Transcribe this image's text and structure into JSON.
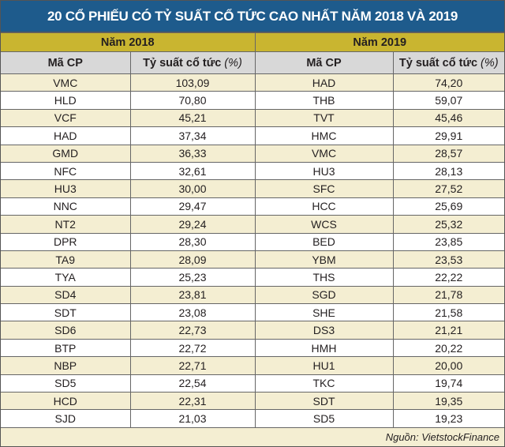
{
  "title": "20 CỔ PHIẾU CÓ TỶ SUẤT CỔ TỨC CAO NHẤT NĂM 2018 VÀ 2019",
  "years": [
    "Năm 2018",
    "Năm 2019"
  ],
  "columns": {
    "code": "Mã CP",
    "yield": "Tỷ suất cổ tức",
    "unit": "(%)"
  },
  "rows": [
    {
      "c18": "VMC",
      "v18": "103,09",
      "c19": "HAD",
      "v19": "74,20"
    },
    {
      "c18": "HLD",
      "v18": "70,80",
      "c19": "THB",
      "v19": "59,07"
    },
    {
      "c18": "VCF",
      "v18": "45,21",
      "c19": "TVT",
      "v19": "45,46"
    },
    {
      "c18": "HAD",
      "v18": "37,34",
      "c19": "HMC",
      "v19": "29,91"
    },
    {
      "c18": "GMD",
      "v18": "36,33",
      "c19": "VMC",
      "v19": "28,57"
    },
    {
      "c18": "NFC",
      "v18": "32,61",
      "c19": "HU3",
      "v19": "28,13"
    },
    {
      "c18": "HU3",
      "v18": "30,00",
      "c19": "SFC",
      "v19": "27,52"
    },
    {
      "c18": "NNC",
      "v18": "29,47",
      "c19": "HCC",
      "v19": "25,69"
    },
    {
      "c18": "NT2",
      "v18": "29,24",
      "c19": "WCS",
      "v19": "25,32"
    },
    {
      "c18": "DPR",
      "v18": "28,30",
      "c19": "BED",
      "v19": "23,85"
    },
    {
      "c18": "TA9",
      "v18": "28,09",
      "c19": "YBM",
      "v19": "23,53"
    },
    {
      "c18": "TYA",
      "v18": "25,23",
      "c19": "THS",
      "v19": "22,22"
    },
    {
      "c18": "SD4",
      "v18": "23,81",
      "c19": "SGD",
      "v19": "21,78"
    },
    {
      "c18": "SDT",
      "v18": "23,08",
      "c19": "SHE",
      "v19": "21,58"
    },
    {
      "c18": "SD6",
      "v18": "22,73",
      "c19": "DS3",
      "v19": "21,21"
    },
    {
      "c18": "BTP",
      "v18": "22,72",
      "c19": "HMH",
      "v19": "20,22"
    },
    {
      "c18": "NBP",
      "v18": "22,71",
      "c19": "HU1",
      "v19": "20,00"
    },
    {
      "c18": "SD5",
      "v18": "22,54",
      "c19": "TKC",
      "v19": "19,74"
    },
    {
      "c18": "HCD",
      "v18": "22,31",
      "c19": "SDT",
      "v19": "19,35"
    },
    {
      "c18": "SJD",
      "v18": "21,03",
      "c19": "SD5",
      "v19": "19,23"
    }
  ],
  "source": "Nguồn: VietstockFinance",
  "colors": {
    "title_bg": "#1e5b8c",
    "year_bg": "#c9b530",
    "header_bg": "#d8d8d8",
    "stripe": "#f4eed2"
  }
}
